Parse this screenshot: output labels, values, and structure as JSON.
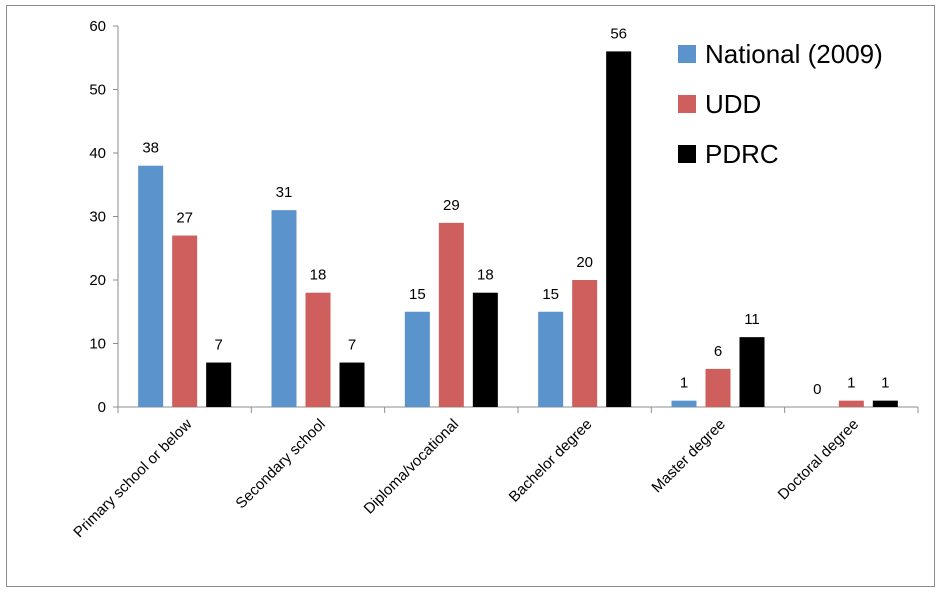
{
  "chart_data": {
    "type": "bar",
    "categories": [
      "Primary school or below",
      "Secondary school",
      "Diploma/vocational",
      "Bachelor degree",
      "Master degree",
      "Doctoral degree"
    ],
    "series": [
      {
        "name": "National (2009)",
        "color": "#5b93cc",
        "values": [
          38,
          31,
          15,
          15,
          1,
          0
        ]
      },
      {
        "name": "UDD",
        "color": "#cf5f5c",
        "values": [
          27,
          18,
          29,
          20,
          6,
          1
        ]
      },
      {
        "name": "PDRC",
        "color": "#000000",
        "values": [
          7,
          7,
          18,
          56,
          11,
          1
        ]
      }
    ],
    "ylim": [
      0,
      60
    ],
    "yticks": [
      0,
      10,
      20,
      30,
      40,
      50,
      60
    ],
    "grid": false,
    "data_labels": true,
    "legend_position": "top-right"
  }
}
